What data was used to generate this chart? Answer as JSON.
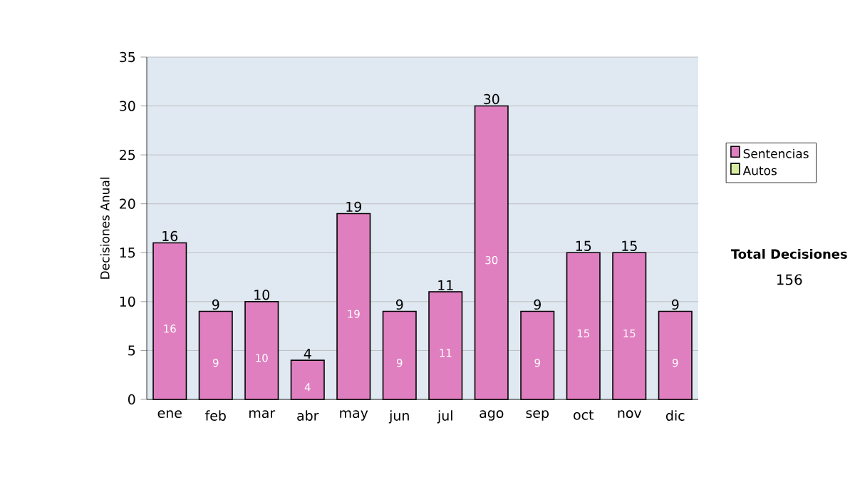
{
  "chart_data": {
    "type": "bar",
    "ylabel": "Decisiones Anual",
    "categories": [
      "ene",
      "feb",
      "mar",
      "abr",
      "may",
      "jun",
      "jul",
      "ago",
      "sep",
      "oct",
      "nov",
      "dic"
    ],
    "series": [
      {
        "name": "Sentencias",
        "color": "#e07fc0",
        "values": [
          16,
          9,
          10,
          4,
          19,
          9,
          11,
          30,
          9,
          15,
          15,
          9
        ],
        "value_labels": [
          "16",
          "9",
          "10",
          "4",
          "19",
          "9",
          "11",
          "30",
          "9",
          "15",
          "15",
          "9"
        ]
      },
      {
        "name": "Autos",
        "color": "#d8eca0",
        "values": [
          0,
          0,
          0,
          0,
          0,
          0,
          0,
          0,
          0,
          0,
          0,
          0
        ]
      }
    ],
    "stacked": true,
    "ylim": [
      0,
      35
    ],
    "yticks": [
      0,
      5,
      10,
      15,
      20,
      25,
      30,
      35
    ],
    "grid": "y",
    "legend": "right",
    "totals": [
      "16",
      "9",
      "10",
      "4",
      "19",
      "9",
      "11",
      "30",
      "9",
      "15",
      "15",
      "9"
    ],
    "annotations": [
      "Total Decisiones",
      "156"
    ]
  }
}
